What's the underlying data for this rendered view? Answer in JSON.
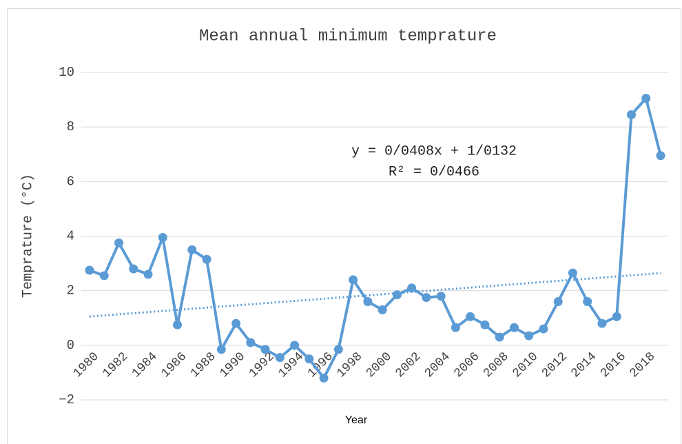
{
  "chart_data": {
    "type": "line",
    "title": "Mean annual minimum temprature",
    "x_label": "Year",
    "y_label": "Temprature (°C)",
    "categories": [
      "1980",
      null,
      "1982",
      null,
      "1984",
      null,
      "1986",
      null,
      "1988",
      null,
      "1990",
      null,
      "1992",
      null,
      "1994",
      null,
      "1996",
      null,
      "1998",
      null,
      "2000",
      null,
      "2002",
      null,
      "2004",
      null,
      "2006",
      null,
      "2008",
      null,
      "2010",
      null,
      "2012",
      null,
      "2014",
      null,
      "2016",
      null,
      "2018",
      null
    ],
    "series": [
      {
        "name": "Temprature",
        "color": "#5b9bd5",
        "values": [
          2.75,
          2.55,
          3.75,
          2.8,
          2.6,
          3.95,
          0.75,
          3.5,
          3.15,
          -0.15,
          0.8,
          0.1,
          -0.15,
          -0.45,
          0.0,
          -0.5,
          -1.2,
          -0.15,
          2.4,
          1.6,
          1.3,
          1.85,
          2.1,
          1.75,
          1.8,
          0.65,
          1.05,
          0.75,
          0.3,
          0.65,
          0.35,
          0.6,
          1.6,
          2.65,
          1.6,
          0.8,
          1.05,
          8.45,
          9.05,
          6.95
        ]
      }
    ],
    "trendline": {
      "slope": 0.0408,
      "intercept": 1.0132,
      "equation": "y = 0/0408x + 1/0132",
      "r2_label": "R² = 0/0466"
    },
    "ylim": [
      -2,
      10
    ],
    "yticks": [
      {
        "value": -2,
        "label": "−2"
      },
      0,
      2,
      4,
      6,
      8,
      10
    ],
    "grid": true
  }
}
